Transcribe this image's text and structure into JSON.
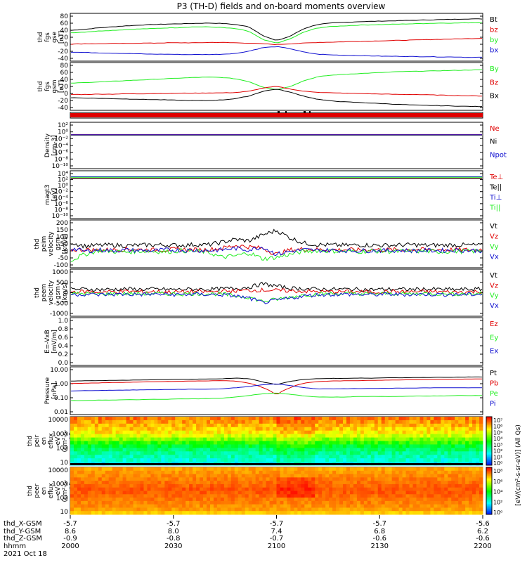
{
  "title": "P3 (TH-D) fields and on-board moments overview",
  "colors": {
    "black": "#000000",
    "red": "#e00000",
    "green": "#22ee22",
    "blue": "#1010d0"
  },
  "chart_data": [
    {
      "type": "line",
      "ylabel": [
        "thd",
        "fgs",
        "gse",
        "[nT]"
      ],
      "ylim": [
        -40,
        90
      ],
      "yticks": [
        "80",
        "60",
        "40",
        "20",
        "0",
        "-20",
        "-40"
      ],
      "legend": [
        {
          "name": "Bt",
          "color": "black"
        },
        {
          "name": "bz",
          "color": "red"
        },
        {
          "name": "by",
          "color": "green"
        },
        {
          "name": "bx",
          "color": "blue"
        }
      ],
      "series": [
        {
          "name": "Bt",
          "color": "black",
          "values": [
            45,
            48,
            52,
            55,
            58,
            60,
            62,
            63,
            64,
            65,
            66,
            65,
            62,
            55,
            30,
            15,
            28,
            50,
            62,
            66,
            68,
            70,
            71,
            72,
            73,
            74,
            75,
            76,
            77,
            78,
            78
          ]
        },
        {
          "name": "by",
          "color": "green",
          "values": [
            38,
            40,
            43,
            45,
            47,
            49,
            50,
            52,
            53,
            55,
            55,
            53,
            50,
            42,
            18,
            8,
            20,
            40,
            52,
            56,
            58,
            60,
            61,
            62,
            63,
            64,
            65,
            66,
            66,
            67,
            67
          ]
        },
        {
          "name": "bz",
          "color": "red",
          "values": [
            5,
            6,
            6,
            7,
            7,
            8,
            8,
            9,
            9,
            9,
            10,
            10,
            9,
            8,
            6,
            4,
            6,
            8,
            10,
            11,
            12,
            13,
            14,
            15,
            16,
            17,
            18,
            19,
            20,
            21,
            22
          ]
        },
        {
          "name": "bx",
          "color": "blue",
          "values": [
            -18,
            -19,
            -20,
            -21,
            -22,
            -23,
            -24,
            -24,
            -25,
            -25,
            -25,
            -24,
            -22,
            -15,
            -5,
            -2,
            -8,
            -18,
            -24,
            -26,
            -27,
            -28,
            -29,
            -30,
            -30,
            -31,
            -31,
            -32,
            -32,
            -33,
            -33
          ]
        }
      ]
    },
    {
      "type": "line",
      "ylabel": [
        "thd",
        "fgs",
        "gsm",
        "[nT]"
      ],
      "ylim": [
        -50,
        90
      ],
      "yticks": [
        "80",
        "60",
        "40",
        "20",
        "0",
        "-20",
        "-40"
      ],
      "legend": [
        {
          "name": "By",
          "color": "green"
        },
        {
          "name": "Bz",
          "color": "red"
        },
        {
          "name": "Bx",
          "color": "black"
        }
      ],
      "series": [
        {
          "name": "By",
          "color": "green",
          "values": [
            30,
            32,
            34,
            36,
            38,
            40,
            42,
            44,
            46,
            48,
            49,
            48,
            44,
            35,
            18,
            10,
            20,
            38,
            50,
            55,
            58,
            60,
            62,
            64,
            66,
            67,
            68,
            69,
            70,
            71,
            72
          ]
        },
        {
          "name": "Bz",
          "color": "red",
          "values": [
            -5,
            -5,
            -4,
            -4,
            -3,
            -3,
            -2,
            -2,
            -1,
            -1,
            0,
            0,
            1,
            5,
            15,
            20,
            12,
            5,
            2,
            0,
            -1,
            -2,
            -3,
            -4,
            -5,
            -5,
            -6,
            -7,
            -8,
            -9,
            -10
          ]
        },
        {
          "name": "Bx",
          "color": "black",
          "values": [
            -15,
            -16,
            -17,
            -18,
            -19,
            -20,
            -21,
            -22,
            -23,
            -24,
            -24,
            -22,
            -18,
            -10,
            5,
            12,
            2,
            -10,
            -20,
            -25,
            -28,
            -30,
            -32,
            -34,
            -36,
            -38,
            -39,
            -40,
            -41,
            -42,
            -43
          ]
        }
      ]
    },
    {
      "type": "bar",
      "ylabel": [],
      "note": "mode flag bar",
      "color": "red"
    },
    {
      "type": "line",
      "ylabel": [
        "Density",
        "[cm-3]"
      ],
      "yscale": "log",
      "yticks": [
        "10²",
        "10⁰",
        "10⁻²",
        "10⁻⁴",
        "10⁻⁶",
        "10⁻⁸",
        "10⁻¹⁰"
      ],
      "legend": [
        {
          "name": "Ne",
          "color": "red"
        },
        {
          "name": "Ni",
          "color": "black"
        },
        {
          "name": "Npot",
          "color": "blue"
        }
      ],
      "series": [
        {
          "name": "Ne",
          "color": "red",
          "values": [
            0.6
          ]
        },
        {
          "name": "Ni",
          "color": "black",
          "values": [
            0.4
          ]
        },
        {
          "name": "Npot",
          "color": "blue",
          "values": [
            0.5
          ]
        }
      ]
    },
    {
      "type": "line",
      "ylabel": [
        "magt3",
        "[eV]"
      ],
      "yscale": "log",
      "yticks": [
        "10⁴",
        "10²",
        "10⁰",
        "10⁻²",
        "10⁻⁴",
        "10⁻⁶",
        "10⁻⁸",
        "10⁻¹⁰"
      ],
      "legend": [
        {
          "name": "Te⊥",
          "color": "red"
        },
        {
          "name": "Te||",
          "color": "black"
        },
        {
          "name": "Ti⊥",
          "color": "blue"
        },
        {
          "name": "Ti||",
          "color": "green"
        }
      ],
      "series": [
        {
          "name": "Te⊥",
          "color": "red",
          "values": [
            1000
          ]
        },
        {
          "name": "Te||",
          "color": "black",
          "values": [
            800
          ]
        },
        {
          "name": "Ti⊥",
          "color": "blue",
          "values": [
            3000
          ]
        },
        {
          "name": "Ti||",
          "color": "green",
          "values": [
            2000
          ]
        }
      ]
    },
    {
      "type": "line",
      "ylabel": [
        "thd",
        "peim",
        "velocity",
        "gsm",
        "[km/s]"
      ],
      "ylim": [
        -100,
        200
      ],
      "yticks": [
        "200",
        "150",
        "100",
        "50",
        "0",
        "-50",
        "-100"
      ],
      "legend": [
        {
          "name": "Vt",
          "color": "black"
        },
        {
          "name": "Vz",
          "color": "red"
        },
        {
          "name": "Vy",
          "color": "green"
        },
        {
          "name": "Vx",
          "color": "blue"
        }
      ],
      "series": [
        {
          "name": "Vt",
          "color": "black",
          "values": [
            60,
            35,
            40,
            42,
            38,
            40,
            44,
            42,
            40,
            45,
            43,
            60,
            80,
            70,
            110,
            140,
            90,
            55,
            45,
            42,
            40,
            43,
            41,
            40,
            42,
            44,
            40,
            41,
            43,
            42,
            40
          ]
        },
        {
          "name": "Vz",
          "color": "red",
          "values": [
            10,
            12,
            8,
            10,
            14,
            12,
            9,
            11,
            13,
            10,
            12,
            20,
            40,
            30,
            20,
            -20,
            10,
            15,
            12,
            10,
            11,
            9,
            12,
            10,
            11,
            13,
            10,
            12,
            11,
            10,
            12
          ]
        },
        {
          "name": "Vy",
          "color": "green",
          "values": [
            -60,
            -20,
            5,
            0,
            -5,
            2,
            0,
            -3,
            5,
            0,
            -5,
            -40,
            -30,
            -10,
            -50,
            -40,
            -20,
            0,
            5,
            2,
            0,
            -2,
            3,
            0,
            -1,
            2,
            0,
            -3,
            1,
            0,
            2
          ]
        },
        {
          "name": "Vx",
          "color": "blue",
          "values": [
            20,
            0,
            10,
            5,
            8,
            6,
            4,
            10,
            8,
            6,
            5,
            10,
            20,
            10,
            30,
            -20,
            0,
            10,
            6,
            8,
            5,
            4,
            6,
            5,
            7,
            4,
            6,
            5,
            8,
            6,
            5
          ]
        }
      ]
    },
    {
      "type": "line",
      "ylabel": [
        "thd",
        "peem",
        "velocity",
        "gsm",
        "[km/s]"
      ],
      "ylim": [
        -1000,
        1000
      ],
      "yticks": [
        "1000",
        "500",
        "0",
        "-500",
        "-1000"
      ],
      "legend": [
        {
          "name": "Vt",
          "color": "black"
        },
        {
          "name": "Vz",
          "color": "red"
        },
        {
          "name": "Vy",
          "color": "green"
        },
        {
          "name": "Vx",
          "color": "blue"
        }
      ],
      "series": [
        {
          "name": "Vt",
          "color": "black",
          "values": [
            150,
            160,
            140,
            150,
            170,
            150,
            160,
            150,
            140,
            160,
            150,
            170,
            200,
            250,
            400,
            300,
            200,
            180,
            160,
            150,
            160,
            150,
            140,
            160,
            150,
            150,
            160,
            150,
            140,
            150,
            160
          ]
        },
        {
          "name": "Vz",
          "color": "red",
          "values": [
            40,
            50,
            30,
            40,
            60,
            40,
            50,
            40,
            30,
            50,
            40,
            60,
            80,
            100,
            120,
            100,
            80,
            60,
            50,
            40,
            50,
            40,
            30,
            50,
            40,
            40,
            50,
            40,
            30,
            40,
            50
          ]
        },
        {
          "name": "Vy",
          "color": "green",
          "values": [
            -50,
            -40,
            -60,
            -50,
            -40,
            -50,
            -40,
            -50,
            -60,
            -40,
            -50,
            -60,
            -150,
            -200,
            -400,
            -300,
            -200,
            -100,
            -60,
            -50,
            -40,
            -50,
            -60,
            -40,
            -50,
            -50,
            -40,
            -50,
            -60,
            -50,
            -40
          ]
        },
        {
          "name": "Vx",
          "color": "blue",
          "values": [
            -80,
            -70,
            -90,
            -80,
            -70,
            -80,
            -70,
            -80,
            -90,
            -70,
            -80,
            -90,
            -150,
            -250,
            -450,
            -350,
            -250,
            -150,
            -90,
            -80,
            -70,
            -80,
            -90,
            -70,
            -80,
            -80,
            -70,
            -80,
            -90,
            -80,
            -70
          ]
        }
      ]
    },
    {
      "type": "line",
      "ylabel": [
        "E=-VxB",
        "[mV/m]"
      ],
      "ylim": [
        0,
        1
      ],
      "yticks": [
        "1.0",
        "0.8",
        "0.6",
        "0.4",
        "0.2",
        "0.0"
      ],
      "legend": [
        {
          "name": "Ez",
          "color": "red"
        },
        {
          "name": "Ey",
          "color": "green"
        },
        {
          "name": "Ex",
          "color": "blue"
        }
      ],
      "series": []
    },
    {
      "type": "line",
      "ylabel": [
        "Pressure",
        "[nPa]"
      ],
      "yscale": "log",
      "yticks": [
        "10.00",
        "1.00",
        "0.10",
        "0.01"
      ],
      "legend": [
        {
          "name": "Pt",
          "color": "black"
        },
        {
          "name": "Pb",
          "color": "red"
        },
        {
          "name": "Pe",
          "color": "green"
        },
        {
          "name": "Pi",
          "color": "blue"
        }
      ],
      "series": [
        {
          "name": "Pt",
          "color": "black",
          "values": [
            1.4,
            1.45,
            1.5,
            1.55,
            1.6,
            1.65,
            1.7,
            1.75,
            1.8,
            1.85,
            1.9,
            2.0,
            2.2,
            2.0,
            1.2,
            0.8,
            1.3,
            1.8,
            2.0,
            2.1,
            2.1,
            2.2,
            2.2,
            2.3,
            2.3,
            2.4,
            2.4,
            2.5,
            2.5,
            2.6,
            2.6
          ]
        },
        {
          "name": "Pb",
          "color": "red",
          "values": [
            0.95,
            1.0,
            1.05,
            1.1,
            1.15,
            1.2,
            1.25,
            1.3,
            1.35,
            1.4,
            1.45,
            1.5,
            1.4,
            1.0,
            0.5,
            0.15,
            0.5,
            1.0,
            1.3,
            1.4,
            1.45,
            1.5,
            1.55,
            1.6,
            1.65,
            1.7,
            1.75,
            1.8,
            1.85,
            1.9,
            1.95
          ]
        },
        {
          "name": "Pi",
          "color": "blue",
          "values": [
            0.3,
            0.32,
            0.33,
            0.34,
            0.35,
            0.36,
            0.37,
            0.38,
            0.39,
            0.4,
            0.4,
            0.42,
            0.5,
            0.6,
            0.8,
            0.9,
            0.7,
            0.5,
            0.42,
            0.42,
            0.43,
            0.44,
            0.45,
            0.46,
            0.47,
            0.48,
            0.49,
            0.5,
            0.5,
            0.5,
            0.5
          ]
        },
        {
          "name": "Pe",
          "color": "green",
          "values": [
            0.07,
            0.07,
            0.075,
            0.075,
            0.08,
            0.08,
            0.085,
            0.085,
            0.09,
            0.09,
            0.095,
            0.1,
            0.12,
            0.15,
            0.2,
            0.22,
            0.18,
            0.14,
            0.12,
            0.12,
            0.12,
            0.13,
            0.13,
            0.13,
            0.13,
            0.14,
            0.14,
            0.14,
            0.15,
            0.15,
            0.15
          ]
        }
      ]
    },
    {
      "type": "heatmap",
      "ylabel": [
        "thd",
        "peir",
        "en",
        "eflux",
        "eV",
        "(cm²-s-",
        "sr-eV)"
      ],
      "yscale": "log",
      "yticks": [
        "10000",
        "1000",
        "100",
        "10"
      ]
    },
    {
      "type": "heatmap",
      "ylabel": [
        "thd",
        "peer",
        "en",
        "eflux",
        "eV",
        "(cm²-s-",
        "sr-eV)"
      ],
      "yscale": "log",
      "yticks": [
        "10000",
        "1000",
        "100",
        "10"
      ]
    }
  ],
  "colorbar": {
    "label": "[eV/(cm²-s-sr-eV)] (All Qs)",
    "ticks_top": [
      "10⁷",
      "10⁶",
      "10⁵",
      "10⁴",
      "10³",
      "10²",
      "10¹",
      "10⁰"
    ],
    "ticks_bottom": [
      "10⁸",
      "10⁶",
      "10⁴",
      "10²",
      "10⁰"
    ]
  },
  "xaxis": {
    "row_labels": [
      "thd_X-GSM",
      "thd_Y-GSM",
      "thd_Z-GSM",
      "hhmm",
      "2021 Oct 18"
    ],
    "columns": [
      {
        "x": "-5.7",
        "y": "8.6",
        "z": "-0.9",
        "t": "2000"
      },
      {
        "x": "-5.7",
        "y": "8.0",
        "z": "-0.8",
        "t": "2030"
      },
      {
        "x": "-5.7",
        "y": "7.4",
        "z": "-0.7",
        "t": "2100"
      },
      {
        "x": "-5.7",
        "y": "6.8",
        "z": "-0.6",
        "t": "2130"
      },
      {
        "x": "-5.6",
        "y": "6.2",
        "z": "-0.6",
        "t": "2200"
      }
    ]
  }
}
